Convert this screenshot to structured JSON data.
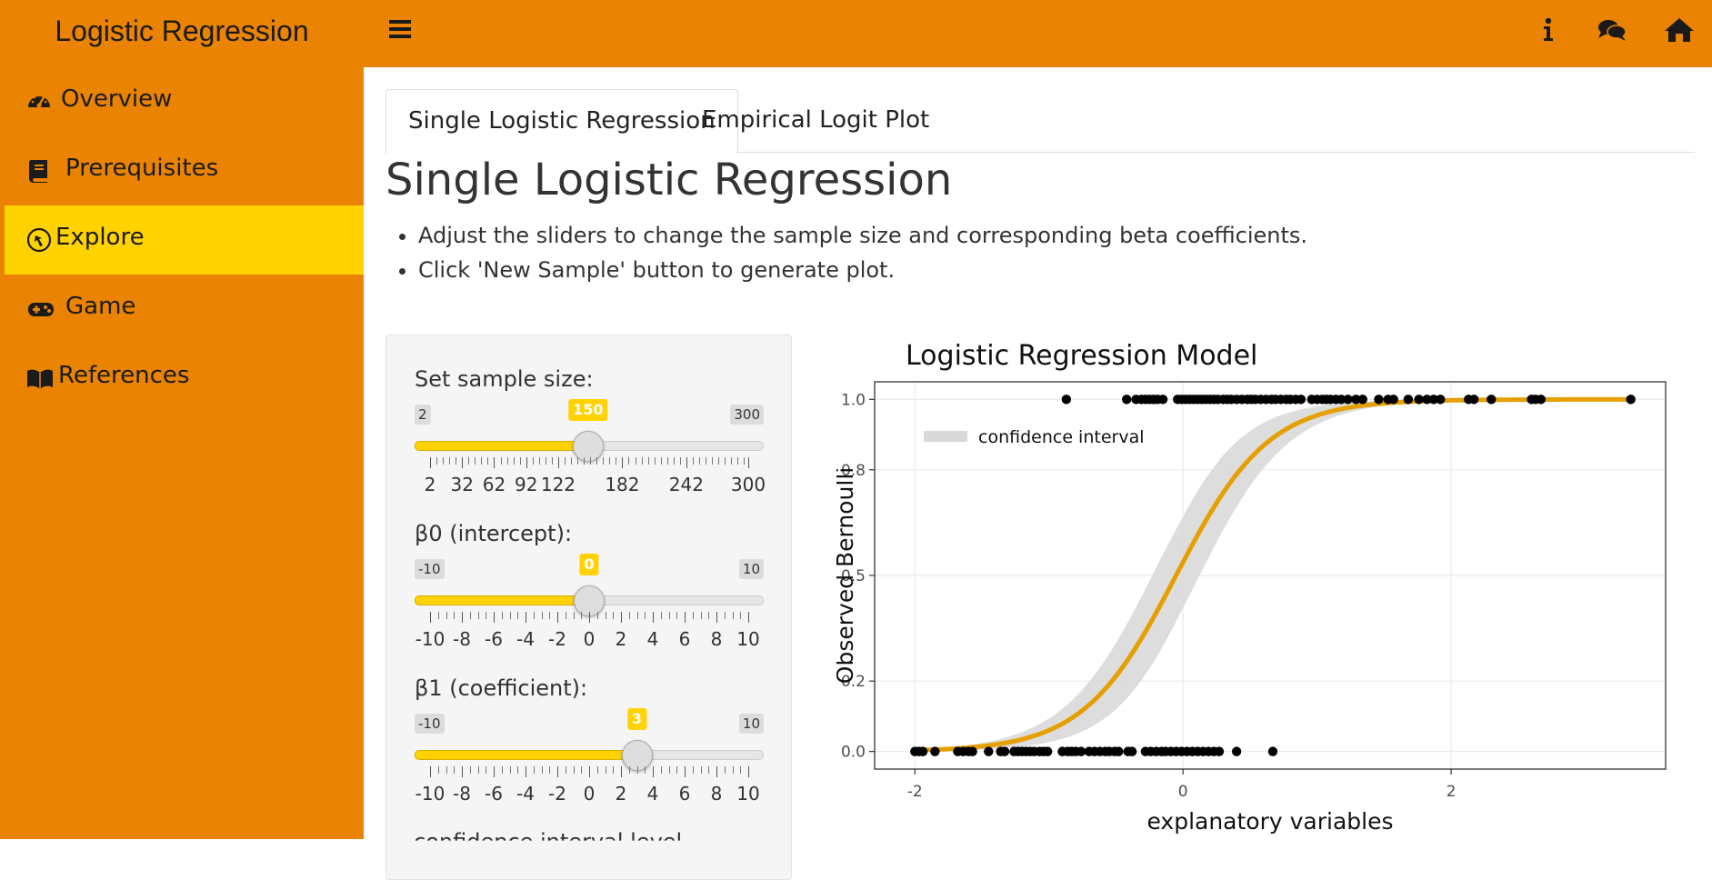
{
  "app": {
    "title": "Logistic Regression"
  },
  "header": {
    "icons": [
      "bars-icon",
      "info-icon",
      "comments-icon",
      "home-icon"
    ]
  },
  "sidebar": {
    "items": [
      {
        "label": "Overview",
        "icon": "tachometer-icon",
        "active": false
      },
      {
        "label": "Prerequisites",
        "icon": "book-icon",
        "active": false
      },
      {
        "label": "Explore",
        "icon": "wpexplorer-icon",
        "active": true
      },
      {
        "label": "Game",
        "icon": "gamepad-icon",
        "active": false
      },
      {
        "label": "References",
        "icon": "book-open-reader-icon",
        "active": false
      }
    ],
    "colors": {
      "background": "#E98301",
      "active": "#FFD200"
    }
  },
  "tabs": [
    {
      "label": "Single Logistic Regression",
      "active": true
    },
    {
      "label": "Empirical Logit Plot",
      "active": false
    }
  ],
  "main": {
    "title": "Single Logistic Regression",
    "instructions": [
      "Adjust the sliders to change the sample size and corresponding beta coefficients.",
      "Click 'New Sample' button to generate plot."
    ],
    "cutoff_label": "confidence interval level"
  },
  "sliders": [
    {
      "label": "Set sample size:",
      "min": 2,
      "max": 300,
      "value": 150,
      "min_label": "2",
      "max_label": "300",
      "value_label": "150",
      "tick_labels": [
        "2",
        "32",
        "62",
        "92",
        "122",
        "182",
        "242",
        "300"
      ],
      "tick_values": [
        2,
        32,
        62,
        92,
        122,
        182,
        242,
        300
      ]
    },
    {
      "label": "β0 (intercept):",
      "min": -10,
      "max": 10,
      "value": 0,
      "min_label": "-10",
      "max_label": "10",
      "value_label": "0",
      "tick_labels": [
        "-10",
        "-8",
        "-6",
        "-4",
        "-2",
        "0",
        "2",
        "4",
        "6",
        "8",
        "10"
      ],
      "tick_values": [
        -10,
        -8,
        -6,
        -4,
        -2,
        0,
        2,
        4,
        6,
        8,
        10
      ]
    },
    {
      "label": "β1 (coefficient):",
      "min": -10,
      "max": 10,
      "value": 3,
      "min_label": "-10",
      "max_label": "10",
      "value_label": "3",
      "tick_labels": [
        "-10",
        "-8",
        "-6",
        "-4",
        "-2",
        "0",
        "2",
        "4",
        "6",
        "8",
        "10"
      ],
      "tick_values": [
        -10,
        -8,
        -6,
        -4,
        -2,
        0,
        2,
        4,
        6,
        8,
        10
      ]
    }
  ],
  "chart_data": {
    "type": "scatter",
    "title": "Logistic Regression Model",
    "xlabel": "explanatory variables",
    "ylabel": "Observed Bernoulli",
    "xlim": [
      -2.3,
      3.6
    ],
    "ylim": [
      -0.05,
      1.05
    ],
    "xticks": [
      -2,
      0,
      2
    ],
    "xtick_labels": [
      "-2",
      "0",
      "2"
    ],
    "yticks": [
      0.0,
      0.2,
      0.5,
      0.8,
      1.0
    ],
    "ytick_labels": [
      "0.0",
      "0.2",
      "0.5",
      "0.8",
      "1.0"
    ],
    "grid": true,
    "legend": {
      "position": "top-left",
      "entries": [
        "confidence interval"
      ]
    },
    "colors": {
      "curve": "#E69F00",
      "band": "#d9d9d9",
      "points": "#000000"
    },
    "points_y1": [
      -0.87,
      -0.42,
      -0.35,
      -0.31,
      -0.28,
      -0.25,
      -0.22,
      -0.19,
      -0.15,
      -0.04,
      -0.01,
      0.02,
      0.05,
      0.08,
      0.11,
      0.14,
      0.17,
      0.2,
      0.23,
      0.26,
      0.3,
      0.33,
      0.36,
      0.4,
      0.44,
      0.48,
      0.51,
      0.54,
      0.58,
      0.62,
      0.66,
      0.69,
      0.73,
      0.77,
      0.8,
      0.84,
      0.88,
      0.96,
      1.0,
      1.04,
      1.07,
      1.1,
      1.14,
      1.18,
      1.23,
      1.29,
      1.34,
      1.46,
      1.53,
      1.57,
      1.68,
      1.76,
      1.82,
      1.87,
      1.92,
      2.13,
      2.17,
      2.3,
      2.6,
      2.63,
      2.67,
      3.34
    ],
    "points_y0": [
      -2.0,
      -1.97,
      -1.94,
      -1.85,
      -1.68,
      -1.64,
      -1.6,
      -1.57,
      -1.45,
      -1.36,
      -1.33,
      -1.26,
      -1.23,
      -1.2,
      -1.17,
      -1.14,
      -1.11,
      -1.07,
      -1.04,
      -1.01,
      -0.9,
      -0.86,
      -0.83,
      -0.8,
      -0.76,
      -0.7,
      -0.66,
      -0.62,
      -0.58,
      -0.55,
      -0.51,
      -0.48,
      -0.41,
      -0.38,
      -0.28,
      -0.24,
      -0.2,
      -0.16,
      -0.13,
      -0.09,
      -0.05,
      -0.01,
      0.03,
      0.07,
      0.11,
      0.15,
      0.19,
      0.23,
      0.27,
      0.4,
      0.67
    ],
    "fit": {
      "beta0": 0.15,
      "beta1": 2.9
    },
    "band_halfwidth_max": 0.13
  }
}
